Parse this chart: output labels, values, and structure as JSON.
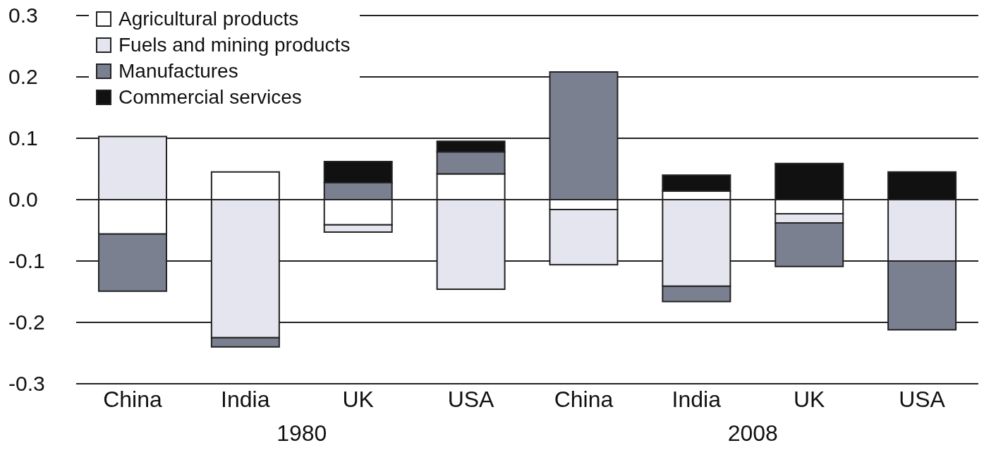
{
  "chart_data": {
    "type": "bar",
    "stacked": true,
    "categories": [
      "China",
      "India",
      "UK",
      "USA",
      "China",
      "India",
      "UK",
      "USA"
    ],
    "series": [
      {
        "name": "Agricultural products",
        "color": "#ffffff",
        "values": [
          -0.056,
          0.045,
          -0.041,
          0.042,
          -0.016,
          0.014,
          -0.023,
          0
        ]
      },
      {
        "name": "Fuels and mining products",
        "color": "#e4e5ee",
        "values": [
          0.103,
          -0.225,
          -0.012,
          -0.146,
          -0.09,
          -0.141,
          -0.015,
          -0.1
        ]
      },
      {
        "name": "Manufactures",
        "color": "#7a8090",
        "values": [
          -0.093,
          -0.015,
          0.028,
          0.036,
          0.208,
          -0.025,
          -0.071,
          -0.112
        ]
      },
      {
        "name": "Commercial services",
        "color": "#111111",
        "values": [
          0,
          0,
          0.034,
          0.017,
          0,
          0.026,
          0.059,
          0.045
        ]
      }
    ],
    "ylim": [
      -0.3,
      0.3
    ],
    "yticks": [
      -0.3,
      -0.2,
      -0.1,
      {
        "value": 0,
        "label": "0.0"
      },
      0.1,
      0.2,
      0.3
    ],
    "grid": "y",
    "legend": "top left",
    "annotations": [
      "1980",
      "2008"
    ]
  }
}
